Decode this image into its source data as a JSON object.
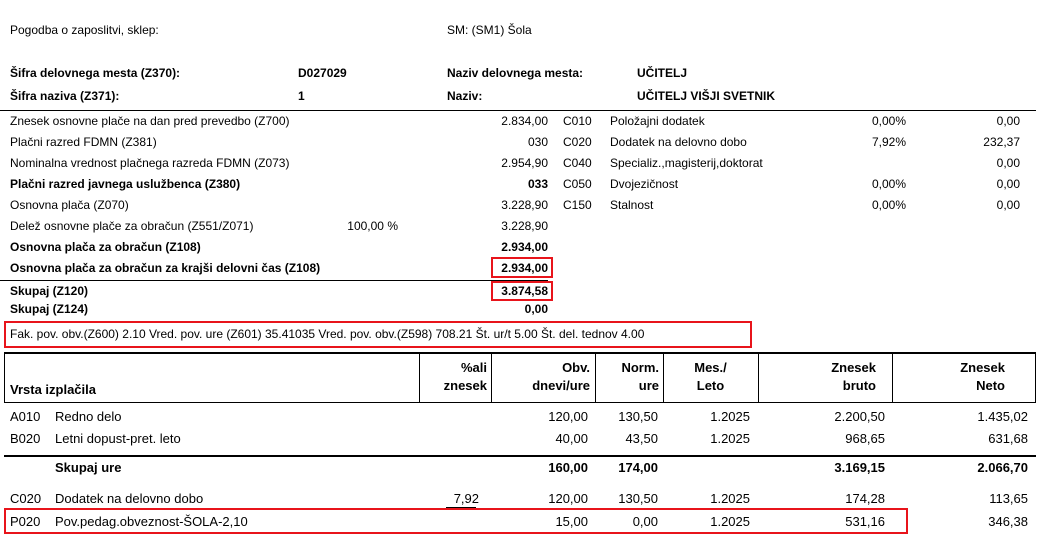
{
  "header": {
    "contract_label": "Pogodba o zaposlitvi, sklep:",
    "sm_label": "SM: (SM1) Šola",
    "position_code_label": "Šifra delovnega mesta (Z370):",
    "position_code_value": "D027029",
    "position_name_label": "Naziv delovnega mesta:",
    "position_name_value": "UČITELJ",
    "title_code_label": "Šifra naziva (Z371):",
    "title_code_value": "1",
    "title_name_label": "Naziv:",
    "title_name_value": "UČITELJ VIŠJI SVETNIK"
  },
  "salary_rows": [
    {
      "label": "Znesek osnovne plače na dan pred prevedbo (Z700)",
      "extra": "",
      "value": "2.834,00",
      "bold": false
    },
    {
      "label": "Plačni razred FDMN (Z381)",
      "extra": "",
      "value": "030",
      "bold": false
    },
    {
      "label": "Nominalna vrednost plačnega razreda FDMN (Z073)",
      "extra": "",
      "value": "2.954,90",
      "bold": false
    },
    {
      "label": "Plačni razred javnega uslužbenca (Z380)",
      "extra": "",
      "value": "033",
      "bold": true
    },
    {
      "label": "Osnovna plača (Z070)",
      "extra": "",
      "value": "3.228,90",
      "bold": false
    },
    {
      "label": "Delež osnovne plače za obračun (Z551/Z071)",
      "extra": "100,00 %",
      "value": "3.228,90",
      "bold": false
    },
    {
      "label": "Osnovna plača za obračun (Z108)",
      "extra": "",
      "value": "2.934,00",
      "bold": true
    },
    {
      "label": "Osnovna plača za obračun za krajši delovni čas (Z108)",
      "extra": "",
      "value": "2.934,00",
      "bold": true
    }
  ],
  "totals": [
    {
      "label": "Skupaj (Z120)",
      "value": "3.874,58"
    },
    {
      "label": "Skupaj (Z124)",
      "value": "0,00"
    }
  ],
  "allowances": [
    {
      "code": "C010",
      "label": "Položajni dodatek",
      "pct": "0,00%",
      "value": "0,00"
    },
    {
      "code": "C020",
      "label": "Dodatek na delovno dobo",
      "pct": "7,92%",
      "value": "232,37"
    },
    {
      "code": "C040",
      "label": "Specializ.,magisterij,doktorat",
      "pct": "",
      "value": "0,00"
    },
    {
      "code": "C050",
      "label": "Dvojezičnost",
      "pct": "0,00%",
      "value": "0,00"
    },
    {
      "code": "C150",
      "label": "Stalnost",
      "pct": "0,00%",
      "value": "0,00"
    }
  ],
  "factors_line": "Fak. pov. obv.(Z600) 2.10  Vred. pov. ure (Z601) 35.41035  Vred. pov. obv.(Z598) 708.21 Št. ur/t 5.00 Št. del. tednov 4.00",
  "table": {
    "headers": {
      "type": "Vrsta izplačila",
      "pct_1": "%ali",
      "pct_2": "znesek",
      "days_1": "Obv.",
      "days_2": "dnevi/ure",
      "norm_1": "Norm.",
      "norm_2": "ure",
      "month_1": "Mes./",
      "month_2": "Leto",
      "gross_1": "Znesek",
      "gross_2": "bruto",
      "net_1": "Znesek",
      "net_2": "Neto"
    },
    "rows": [
      {
        "code": "A010",
        "name": "Redno delo",
        "pct": "",
        "days": "120,00",
        "norm": "130,50",
        "month": "1.2025",
        "gross": "2.200,50",
        "net": "1.435,02"
      },
      {
        "code": "B020",
        "name": "Letni dopust-pret. leto",
        "pct": "",
        "days": "40,00",
        "norm": "43,50",
        "month": "1.2025",
        "gross": "968,65",
        "net": "631,68"
      }
    ],
    "subtotal": {
      "label": "Skupaj ure",
      "days": "160,00",
      "norm": "174,00",
      "gross": "3.169,15",
      "net": "2.066,70"
    },
    "rows2": [
      {
        "code": "C020",
        "name": "Dodatek na delovno dobo",
        "pct": "7,92",
        "days": "120,00",
        "norm": "130,50",
        "month": "1.2025",
        "gross": "174,28",
        "net": "113,65"
      },
      {
        "code": "P020",
        "name": "Pov.pedag.obveznost-ŠOLA-2,10",
        "pct": "",
        "days": "15,00",
        "norm": "0,00",
        "month": "1.2025",
        "gross": "531,16",
        "net": "346,38"
      }
    ]
  },
  "colors": {
    "highlight": "#e8141b",
    "text": "#000000"
  }
}
